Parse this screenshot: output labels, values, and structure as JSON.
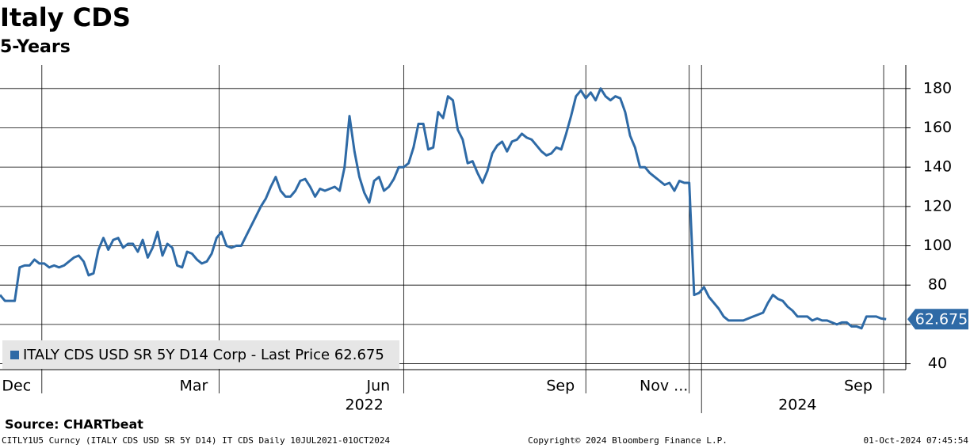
{
  "chart_data": {
    "type": "line",
    "title": "Italy CDS",
    "subtitle": "5-Years",
    "source": "Source: CHARTbeat",
    "footer_left": "CITLY1U5 Curncy (ITALY CDS USD SR 5Y D14) IT CDS  Daily 10JUL2021-01OCT2024",
    "footer_center": "Copyright© 2024 Bloomberg Finance L.P.",
    "footer_right": "01-Oct-2024 07:45:54",
    "series": [
      {
        "name": "ITALY CDS USD SR 5Y D14 Corp - Last Price 62.675",
        "color": "#2e6aa6",
        "values": [
          75,
          72,
          72,
          72,
          89,
          90,
          90,
          93,
          91,
          91,
          89,
          90,
          89,
          90,
          92,
          94,
          95,
          92,
          85,
          86,
          98,
          104,
          98,
          103,
          104,
          99,
          101,
          101,
          97,
          103,
          94,
          99,
          107,
          95,
          101,
          99,
          90,
          89,
          97,
          96,
          93,
          91,
          92,
          96,
          104,
          107,
          100,
          99,
          100,
          100,
          105,
          110,
          115,
          120,
          124,
          130,
          135,
          128,
          125,
          125,
          128,
          133,
          134,
          130,
          125,
          129,
          128,
          129,
          130,
          128,
          140,
          166,
          148,
          135,
          127,
          122,
          133,
          135,
          128,
          130,
          134,
          140,
          140,
          142,
          150,
          162,
          162,
          149,
          150,
          168,
          165,
          176,
          174,
          159,
          154,
          142,
          143,
          137,
          132,
          138,
          147,
          151,
          153,
          148,
          153,
          154,
          157,
          155,
          154,
          151,
          148,
          146,
          147,
          150,
          149,
          157,
          166,
          176,
          179,
          175,
          178,
          174,
          180,
          176,
          174,
          176,
          175,
          168,
          156,
          150,
          140,
          140,
          137,
          135,
          133,
          131,
          132,
          128,
          133,
          132,
          132,
          75,
          76,
          79,
          74,
          71,
          68,
          64,
          62,
          62,
          62,
          62,
          63,
          64,
          65,
          66,
          71,
          75,
          73,
          72,
          69,
          67,
          64,
          64,
          64,
          62,
          63,
          62,
          62,
          61,
          60,
          61,
          61,
          59,
          59,
          58,
          64,
          64,
          64,
          63,
          62.675
        ]
      }
    ],
    "xlim": [
      0,
      184
    ],
    "xticks": [
      {
        "value": 8.5,
        "label": "Dec"
      },
      {
        "value": 44.5,
        "label": "Mar"
      },
      {
        "value": 82,
        "label": "Jun"
      },
      {
        "value": 119,
        "label": "Sep"
      },
      {
        "value": 140,
        "label": "Nov ..."
      },
      {
        "value": 179.5,
        "label": "Sep"
      }
    ],
    "xticks_minor": [
      142.5
    ],
    "year_labels": [
      {
        "value": 74,
        "label": "2022"
      },
      {
        "value": 162,
        "label": "2024"
      }
    ],
    "ylim": [
      37,
      192
    ],
    "yticks": [
      40,
      60,
      80,
      100,
      120,
      140,
      160,
      180
    ],
    "grid": true,
    "legend": "lower left"
  }
}
